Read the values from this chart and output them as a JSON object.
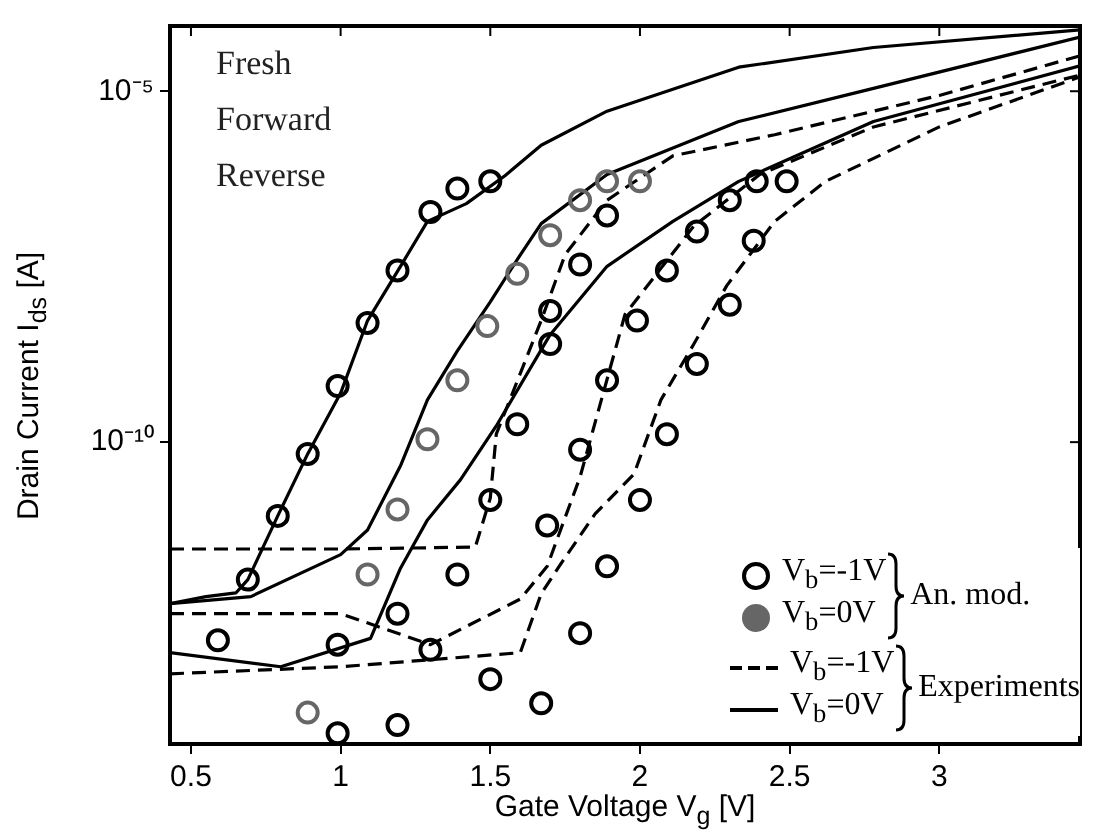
{
  "chart_data": {
    "type": "line",
    "xlabel": "Gate Voltage V$_{g}$ [V]",
    "ylabel": "Drain Current  I$_{ds}$ [A]",
    "log": "y",
    "grid": false,
    "legend": "bottom right",
    "xlim": [
      0.43,
      3.47
    ],
    "xticks": [
      0.5,
      1,
      1.5,
      2,
      2.5,
      3
    ],
    "ylim": [
      5e-15,
      8.5e-05
    ],
    "yticks": [
      {
        "value": 1e-10,
        "label": "10⁻¹⁰"
      },
      {
        "value": 1e-05,
        "label": "10⁻⁵"
      }
    ],
    "annotations": [
      "Fresh",
      "Forward",
      "Reverse",
      "An. mod.",
      "Experiments"
    ],
    "series": [
      {
        "name": "V$_{b}$=-1V",
        "type": "scatter",
        "marker": "circle",
        "color": "#000000",
        "x": [
          0.59,
          0.69,
          0.79,
          0.89,
          0.99,
          1.09,
          1.19,
          1.3,
          1.39,
          1.5
        ],
        "values": [
          1.5e-13,
          1.1e-12,
          8.9e-12,
          6.8e-11,
          6.3e-10,
          5e-09,
          2.8e-08,
          1.9e-07,
          4.1e-07,
          5.2e-07
        ]
      },
      {
        "name": "V$_{b}$=0V",
        "type": "scatter",
        "marker": "circle",
        "color": "#666666",
        "x": [
          0.89,
          1.09,
          1.19,
          1.29,
          1.39,
          1.49,
          1.59,
          1.7,
          1.8,
          1.89,
          2.0
        ],
        "values": [
          1.4e-14,
          1.3e-12,
          1.1e-11,
          1.1e-10,
          7.6e-10,
          4.5e-09,
          2.5e-08,
          8.9e-08,
          2.8e-07,
          5.2e-07,
          5.2e-07
        ]
      },
      {
        "type": "scatter",
        "marker": "circle",
        "color": "#000000",
        "x": [
          0.99,
          0.99,
          1.19,
          1.19,
          1.3,
          1.39,
          1.5,
          1.59,
          1.7,
          1.7,
          1.8,
          1.89
        ],
        "values": [
          7.1e-15,
          1.3e-13,
          9.3e-15,
          3.6e-13,
          1.1e-13,
          1.3e-12,
          1.5e-11,
          1.8e-10,
          2.5e-09,
          7.4e-09,
          3.4e-08,
          1.7e-07
        ]
      },
      {
        "type": "scatter",
        "marker": "circle",
        "color": "#000000",
        "x": [
          1.5,
          1.69,
          1.8,
          1.89,
          1.99,
          2.09,
          2.19,
          2.3,
          2.39
        ],
        "values": [
          4.2e-14,
          6.5e-12,
          7.8e-11,
          7.6e-10,
          5.4e-09,
          2.8e-08,
          1e-07,
          2.8e-07,
          5.2e-07
        ]
      },
      {
        "type": "scatter",
        "marker": "circle",
        "color": "#000000",
        "x": [
          1.67,
          1.8,
          1.89,
          2.0,
          2.09,
          2.19,
          2.3,
          2.38,
          2.49
        ],
        "values": [
          1.9e-14,
          1.9e-13,
          1.7e-12,
          1.5e-11,
          1.3e-10,
          1.3e-09,
          9.1e-09,
          7.4e-08,
          5.2e-07
        ]
      },
      {
        "name": "V$_{b}$=-1V",
        "type": "line",
        "line_style": "dashed",
        "color": "#000000",
        "x": [
          0.43,
          1.0,
          1.45,
          1.5,
          1.52,
          1.67,
          1.75,
          1.89,
          2.11,
          2.45,
          3.0,
          3.47
        ],
        "values": [
          3e-12,
          3e-12,
          3.2e-12,
          1.6e-11,
          1.3e-10,
          5.4e-09,
          4.7e-08,
          2.8e-07,
          1.2e-06,
          2.4e-06,
          8.7e-06,
          3.2e-05
        ]
      },
      {
        "name": "V$_{b}$=0V",
        "type": "line",
        "line_style": "solid",
        "color": "#000000",
        "x": [
          0.43,
          0.55,
          0.65,
          0.69,
          0.79,
          0.89,
          1.0,
          1.09,
          1.2,
          1.29,
          1.42,
          1.55,
          1.67,
          1.89,
          2.33,
          2.78,
          3.47
        ],
        "values": [
          5e-13,
          6.3e-13,
          7.1e-13,
          1.1e-12,
          8.9e-12,
          6.8e-11,
          5e-10,
          5.4e-09,
          3.2e-08,
          1.4e-07,
          2.5e-07,
          6.3e-07,
          1.7e-06,
          5.2e-06,
          2.2e-05,
          4.2e-05,
          7.5e-05
        ]
      },
      {
        "type": "line",
        "line_style": "solid",
        "color": "#000000",
        "x": [
          0.43,
          0.7,
          1.0,
          1.09,
          1.2,
          1.29,
          1.39,
          1.5,
          1.59,
          1.67,
          1.89,
          2.33,
          2.78,
          3.47
        ],
        "values": [
          5e-13,
          6.3e-13,
          2.5e-12,
          5.6e-12,
          4.6e-11,
          4e-10,
          2e-09,
          1e-08,
          4e-08,
          1.3e-07,
          6.5e-07,
          3.7e-06,
          1.1e-05,
          5.9e-05
        ]
      },
      {
        "type": "line",
        "line_style": "solid",
        "color": "#000000",
        "x": [
          0.43,
          0.8,
          1.1,
          1.2,
          1.29,
          1.4,
          1.52,
          1.7,
          1.89,
          2.11,
          2.33,
          2.78,
          3.47
        ],
        "values": [
          1e-13,
          6.3e-14,
          1.6e-13,
          1.6e-12,
          7.8e-12,
          2.9e-11,
          1.7e-10,
          3.4e-09,
          3.2e-08,
          1.4e-07,
          5.2e-07,
          3.7e-06,
          2.3e-05
        ]
      },
      {
        "type": "line",
        "line_style": "dashed",
        "color": "#000000",
        "x": [
          0.43,
          1.0,
          1.3,
          1.6,
          1.69,
          1.8,
          1.95,
          2.18,
          2.4,
          2.78,
          3.47
        ],
        "values": [
          3.6e-13,
          3.6e-13,
          1.3e-13,
          5.8e-13,
          1.7e-12,
          3.2e-11,
          6.6e-09,
          1.2e-07,
          6.5e-07,
          3.1e-06,
          1.7e-05
        ]
      },
      {
        "type": "line",
        "line_style": "dashed",
        "color": "#000000",
        "x": [
          0.43,
          1.0,
          1.6,
          1.67,
          1.73,
          1.85,
          1.98,
          2.07,
          2.18,
          2.29,
          2.45,
          2.62,
          3.0,
          3.47
        ],
        "values": [
          5e-14,
          6.3e-14,
          1e-13,
          6.9e-13,
          1.7e-12,
          9.5e-12,
          3.5e-11,
          4e-10,
          2.5e-09,
          1.7e-08,
          1.4e-07,
          5.2e-07,
          3.1e-06,
          1.6e-05
        ]
      }
    ]
  }
}
